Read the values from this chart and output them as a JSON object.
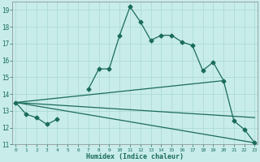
{
  "title": "",
  "xlabel": "Humidex (Indice chaleur)",
  "background_color": "#c8ecea",
  "grid_color": "#a8d8d0",
  "line_color": "#1a6b5a",
  "x_values": [
    0,
    1,
    2,
    3,
    4,
    5,
    6,
    7,
    8,
    9,
    10,
    11,
    12,
    13,
    14,
    15,
    16,
    17,
    18,
    19,
    20,
    21,
    22,
    23
  ],
  "line1": [
    13.5,
    12.8,
    12.6,
    12.2,
    12.5,
    null,
    null,
    14.3,
    15.5,
    15.5,
    17.5,
    19.2,
    18.3,
    17.2,
    17.5,
    17.5,
    17.1,
    16.9,
    15.4,
    15.9,
    14.8,
    12.4,
    11.9,
    11.1
  ],
  "line3_x": [
    0,
    20
  ],
  "line3_y": [
    13.5,
    14.8
  ],
  "line4_x": [
    0,
    23
  ],
  "line4_y": [
    13.5,
    12.6
  ],
  "line5_x": [
    0,
    23
  ],
  "line5_y": [
    13.5,
    11.1
  ],
  "ylim": [
    11,
    19.5
  ],
  "xlim": [
    -0.3,
    23.3
  ],
  "yticks": [
    11,
    12,
    13,
    14,
    15,
    16,
    17,
    18,
    19
  ],
  "xticks": [
    0,
    1,
    2,
    3,
    4,
    5,
    6,
    7,
    8,
    9,
    10,
    11,
    12,
    13,
    14,
    15,
    16,
    17,
    18,
    19,
    20,
    21,
    22,
    23
  ]
}
